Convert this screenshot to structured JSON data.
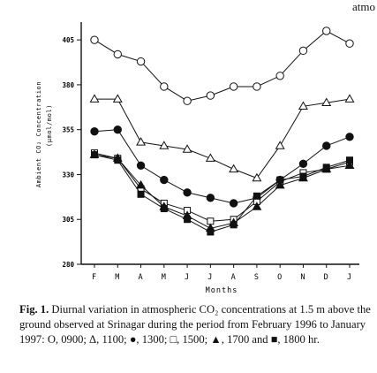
{
  "page_fragment": "atmo",
  "chart_data": {
    "type": "line",
    "xlabel": "Months",
    "ylabel_line1": "Ambient  CO₂  Concentration",
    "ylabel_line2": "(μmol/mol)",
    "categories": [
      "F",
      "M",
      "A",
      "M",
      "J",
      "J",
      "A",
      "S",
      "O",
      "N",
      "D",
      "J"
    ],
    "ylim": [
      280,
      410
    ],
    "yticks": [
      280,
      305,
      330,
      355,
      380,
      405
    ],
    "grid": false,
    "series": [
      {
        "marker": "open-circle",
        "values": [
          405,
          397,
          393,
          379,
          371,
          374,
          379,
          379,
          385,
          399,
          410,
          403
        ]
      },
      {
        "marker": "open-triangle",
        "values": [
          372,
          372,
          348,
          346,
          344,
          339,
          333,
          328,
          346,
          368,
          370,
          372
        ]
      },
      {
        "marker": "filled-circle",
        "values": [
          354,
          355,
          335,
          327,
          320,
          317,
          314,
          317,
          327,
          336,
          346,
          351
        ]
      },
      {
        "marker": "open-square",
        "values": [
          342,
          339,
          322,
          314,
          310,
          304,
          305,
          315,
          326,
          331,
          333,
          337
        ]
      },
      {
        "marker": "filled-triangle",
        "values": [
          341,
          339,
          324,
          312,
          307,
          300,
          303,
          312,
          324,
          328,
          333,
          335
        ]
      },
      {
        "marker": "filled-square",
        "values": [
          341,
          338,
          319,
          311,
          305,
          298,
          302,
          318,
          327,
          329,
          334,
          338
        ]
      }
    ]
  },
  "caption": {
    "lead": "Fig. 1.",
    "text": "Diurnal variation in atmospheric CO₂ concentrations at 1.5 m above the ground observed at Srinagar during the period from February 1996 to January 1997: O, 0900; Δ, 1100; ●, 1300; □, 1500; ▲, 1700 and ■, 1800 hr."
  }
}
